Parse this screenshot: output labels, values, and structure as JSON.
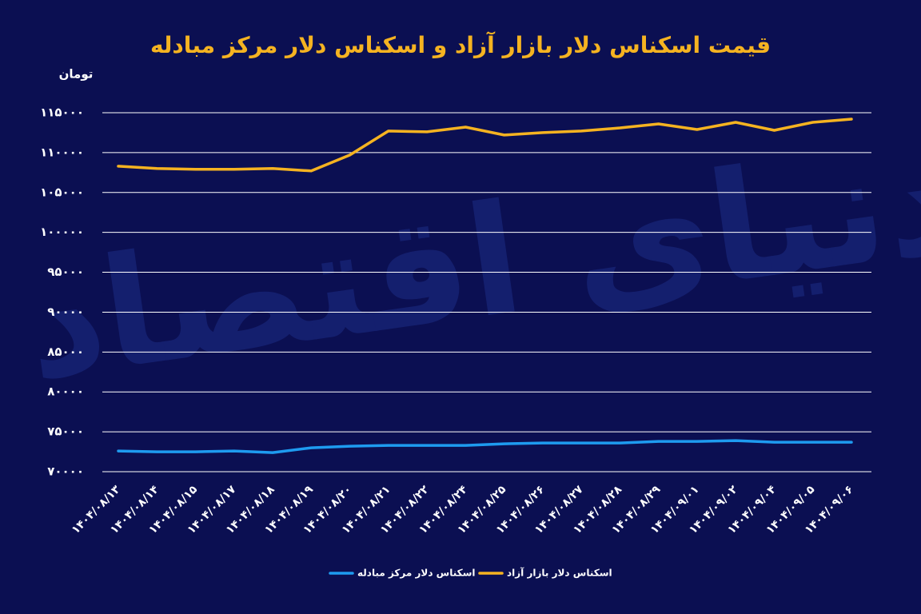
{
  "chart_data": {
    "type": "line",
    "title": "قیمت اسکناس دلار بازار آزاد و اسکناس دلار مرکز مبادله",
    "y_label": "تومان",
    "watermark": "دنیای اقتصاد",
    "categories": [
      "۱۴۰۴/۰۸/۱۳",
      "۱۴۰۴/۰۸/۱۴",
      "۱۴۰۴/۰۸/۱۵",
      "۱۴۰۴/۰۸/۱۷",
      "۱۴۰۴/۰۸/۱۸",
      "۱۴۰۴/۰۸/۱۹",
      "۱۴۰۴/۰۸/۲۰",
      "۱۴۰۴/۰۸/۲۱",
      "۱۴۰۴/۰۸/۲۲",
      "۱۴۰۴/۰۸/۲۴",
      "۱۴۰۴/۰۸/۲۵",
      "۱۴۰۴/۰۸/۲۶",
      "۱۴۰۴/۰۸/۲۷",
      "۱۴۰۴/۰۸/۲۸",
      "۱۴۰۴/۰۸/۲۹",
      "۱۴۰۴/۰۹/۰۱",
      "۱۴۰۴/۰۹/۰۲",
      "۱۴۰۴/۰۹/۰۴",
      "۱۴۰۴/۰۹/۰۵",
      "۱۴۰۴/۰۹/۰۶"
    ],
    "series": [
      {
        "name": "اسکناس دلار مرکز مبادله",
        "color": "#1e9bf0",
        "values": [
          72600,
          72500,
          72500,
          72600,
          72400,
          73000,
          73200,
          73300,
          73300,
          73300,
          73500,
          73600,
          73600,
          73600,
          73800,
          73800,
          73900,
          73700,
          73700,
          73700
        ]
      },
      {
        "name": "اسکناس دلار بازار آزاد",
        "color": "#f5b321",
        "values": [
          108300,
          108000,
          107900,
          107900,
          108000,
          107700,
          109700,
          112700,
          112600,
          113200,
          112200,
          112500,
          112700,
          113100,
          113600,
          112900,
          113800,
          112800,
          113800,
          114200
        ]
      }
    ],
    "ylim": [
      70000,
      115000
    ],
    "yticks": [
      {
        "value": 70000,
        "label": "۷۰۰۰۰"
      },
      {
        "value": 75000,
        "label": "۷۵۰۰۰"
      },
      {
        "value": 80000,
        "label": "۸۰۰۰۰"
      },
      {
        "value": 85000,
        "label": "۸۵۰۰۰"
      },
      {
        "value": 90000,
        "label": "۹۰۰۰۰"
      },
      {
        "value": 95000,
        "label": "۹۵۰۰۰"
      },
      {
        "value": 100000,
        "label": "۱۰۰۰۰۰"
      },
      {
        "value": 105000,
        "label": "۱۰۵۰۰۰"
      },
      {
        "value": 110000,
        "label": "۱۱۰۰۰۰"
      },
      {
        "value": 115000,
        "label": "۱۱۵۰۰۰"
      }
    ],
    "grid": true,
    "legend": "bottom"
  }
}
